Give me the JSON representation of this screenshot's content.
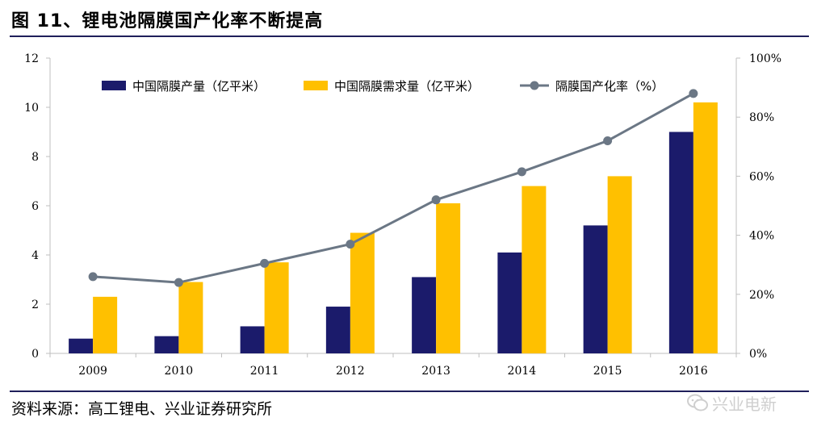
{
  "title": "图 11、锂电池隔膜国产化率不断提高",
  "source": "资料来源：高工锂电、兴业证券研究所",
  "watermark": "兴业电新",
  "colors": {
    "production": "#1b1b6b",
    "demand": "#ffc000",
    "rate": "#6b7785",
    "rule": "#1f1f5a"
  },
  "chart_data": {
    "type": "bar",
    "categories": [
      "2009",
      "2010",
      "2011",
      "2012",
      "2013",
      "2014",
      "2015",
      "2016"
    ],
    "series": [
      {
        "name": "中国隔膜产量（亿平米）",
        "type": "bar",
        "axis": "left",
        "values": [
          0.6,
          0.7,
          1.1,
          1.9,
          3.1,
          4.1,
          5.2,
          9.0
        ]
      },
      {
        "name": "中国隔膜需求量（亿平米）",
        "type": "bar",
        "axis": "left",
        "values": [
          2.3,
          2.9,
          3.7,
          4.9,
          6.1,
          6.8,
          7.2,
          10.2
        ]
      },
      {
        "name": "隔膜国产化率（%）",
        "type": "line",
        "axis": "right",
        "values": [
          26,
          24,
          30.5,
          37,
          52,
          61.5,
          72,
          88
        ]
      }
    ],
    "y_left": {
      "min": 0,
      "max": 12,
      "ticks": [
        0,
        2,
        4,
        6,
        8,
        10,
        12
      ]
    },
    "y_right": {
      "min": 0,
      "max": 100,
      "ticks": [
        "0%",
        "20%",
        "40%",
        "60%",
        "80%",
        "100%"
      ]
    },
    "legend_position": "top",
    "grid": false
  }
}
